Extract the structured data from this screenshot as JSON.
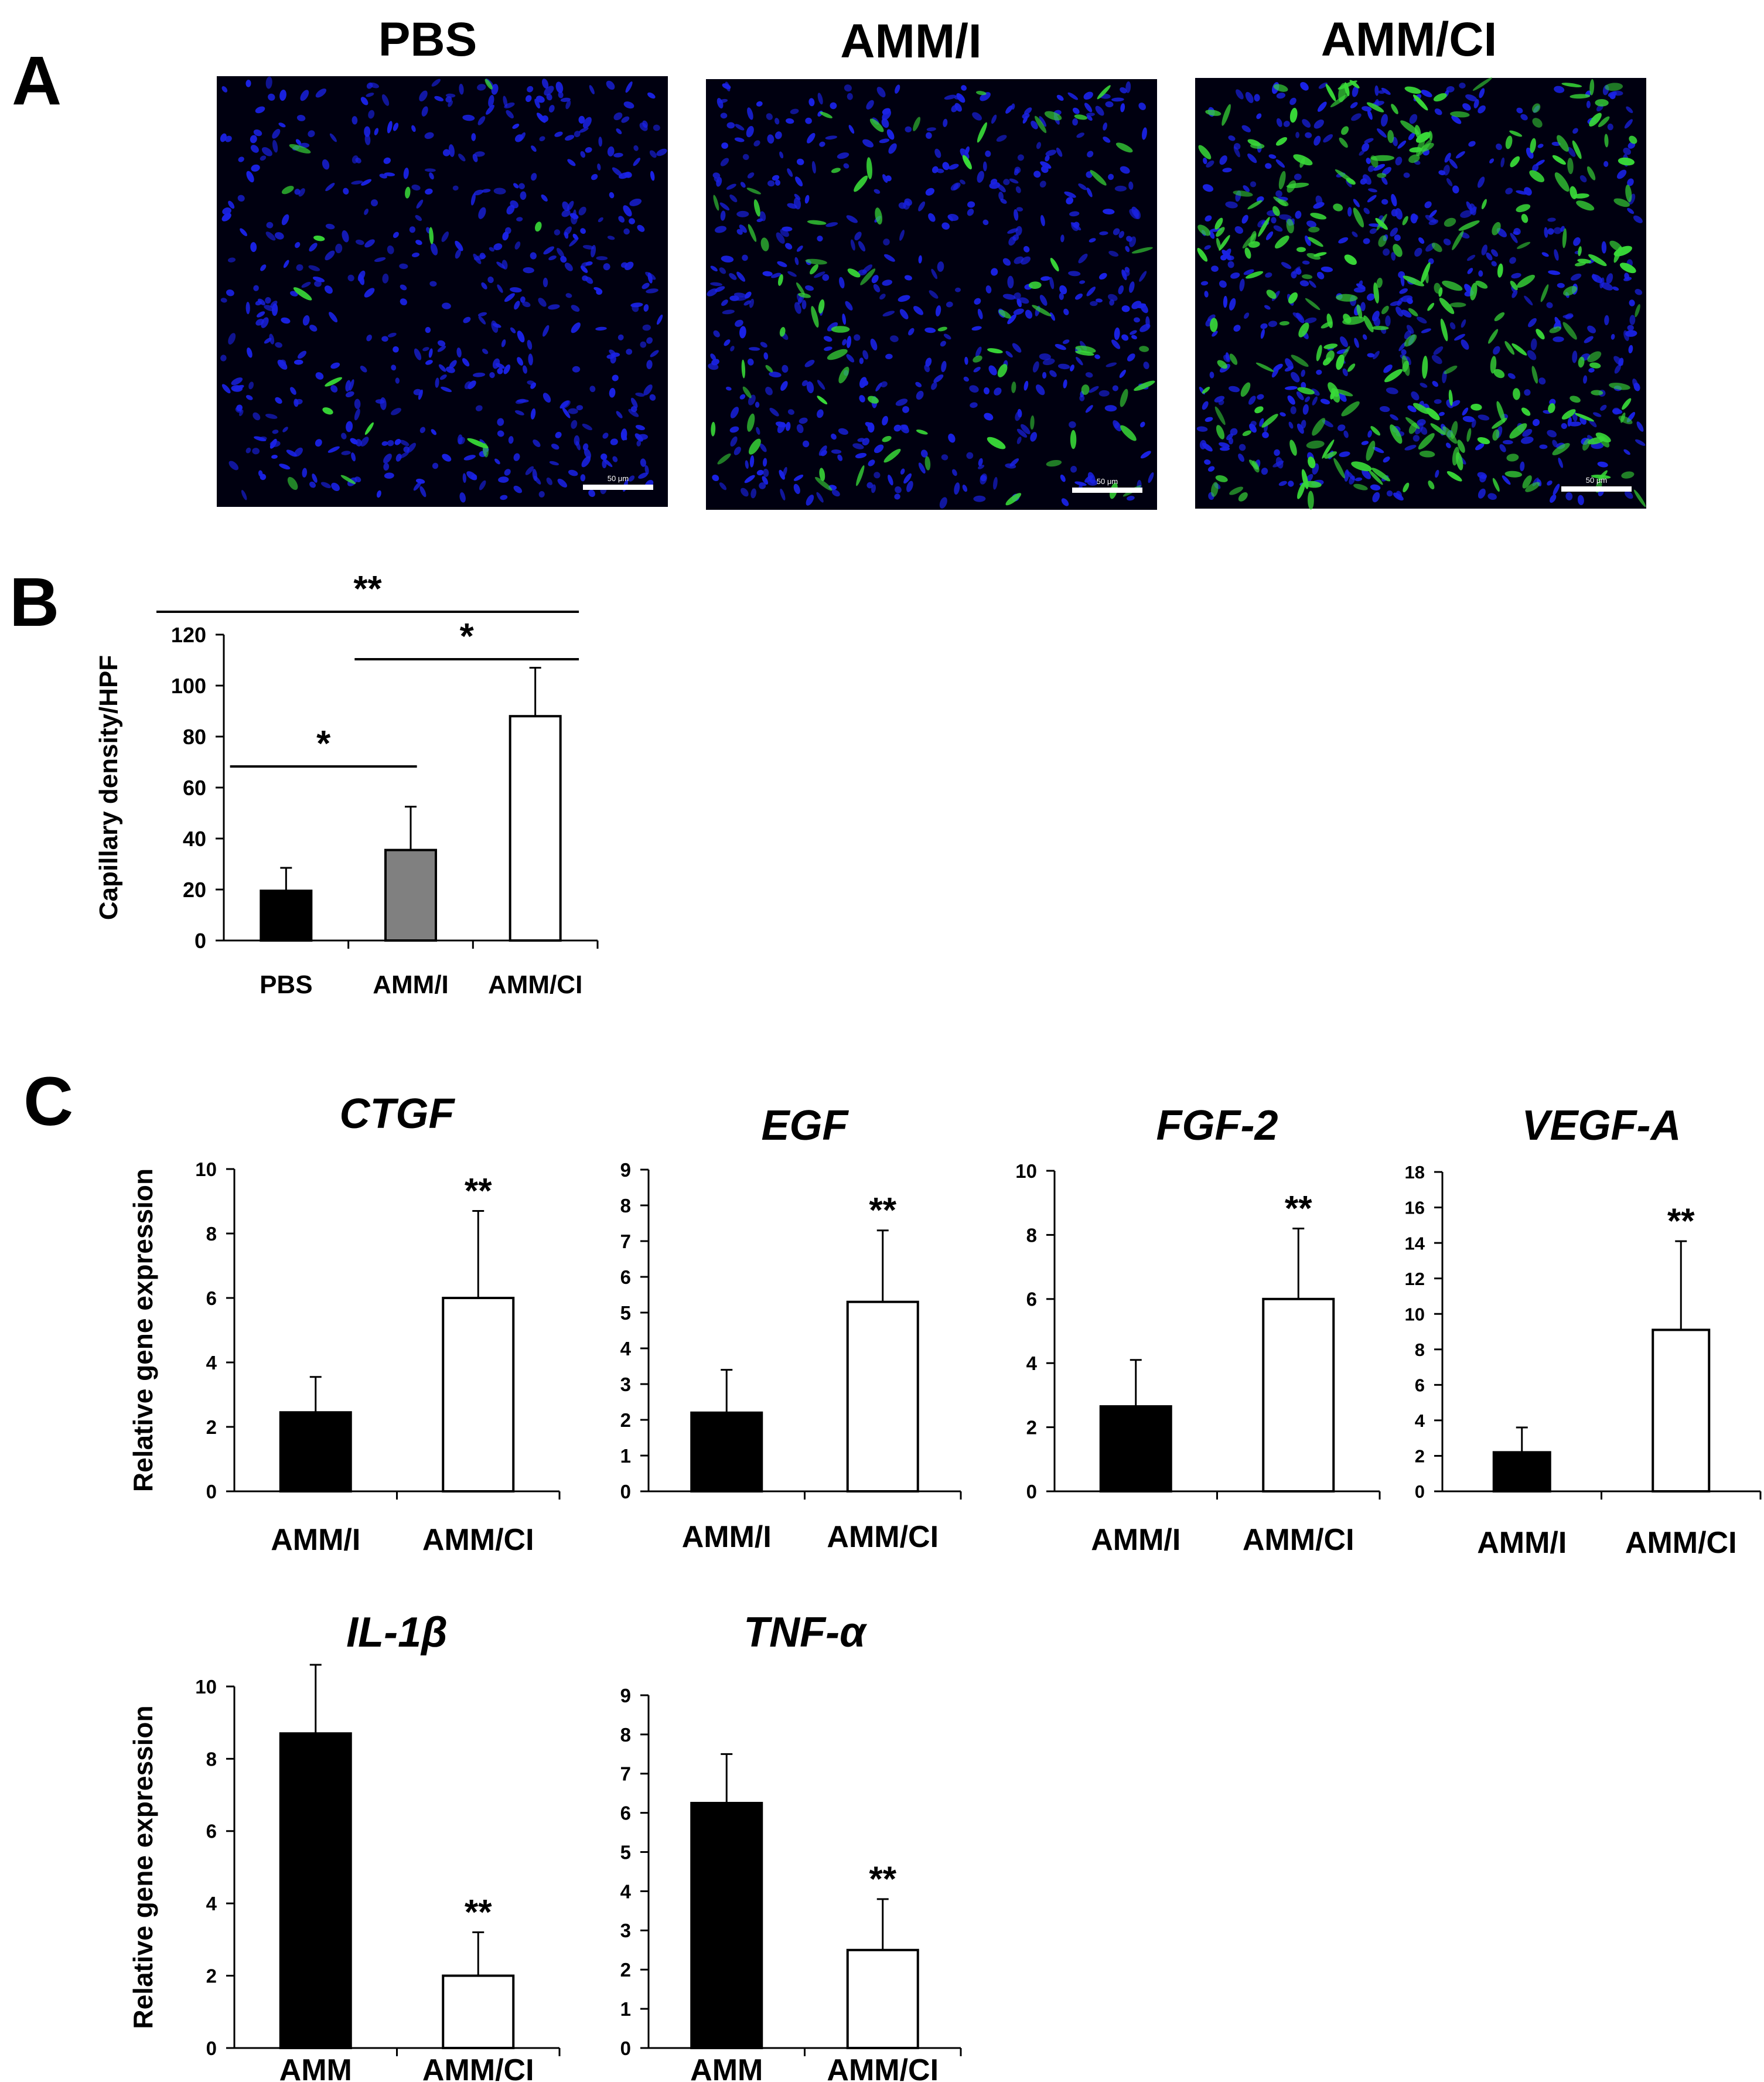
{
  "panel_letters": [
    "A",
    "B",
    "C"
  ],
  "micrographs": [
    {
      "label": "PBS",
      "scale_bar": "50 μm",
      "green_density": 0.03
    },
    {
      "label": "AMM/I",
      "scale_bar": "50 μm",
      "green_density": 0.15
    },
    {
      "label": "AMM/CI",
      "scale_bar": "50 μm",
      "green_density": 0.55
    }
  ],
  "colors": {
    "nuclei": "#1a22e6",
    "capillary_stain": "#38d838",
    "bar_black": "#000000",
    "bar_grey": "#7f7f7f",
    "bar_white": "#ffffff"
  },
  "chart_data": [
    {
      "id": "B",
      "type": "bar",
      "title": "",
      "xlabel": "",
      "ylabel": "Capillary density/HPF",
      "categories": [
        "PBS",
        "AMM/I",
        "AMM/CI"
      ],
      "values": [
        19.5,
        35.5,
        88
      ],
      "errors": [
        9,
        17,
        19
      ],
      "bar_colors": [
        "#000000",
        "#808080",
        "#ffffff"
      ],
      "ylim": [
        0,
        120
      ],
      "yticks": [
        0,
        20,
        40,
        60,
        80,
        100,
        120
      ],
      "grid": false,
      "significance": [
        {
          "from": 0,
          "to": 2,
          "label": "**",
          "level": 0
        },
        {
          "from": 1,
          "to": 2,
          "label": "*",
          "level": 1
        },
        {
          "from": 0,
          "to": 1,
          "label": "*",
          "level": 2
        }
      ]
    },
    {
      "id": "C-CTGF",
      "type": "bar",
      "title": "CTGF",
      "ylabel": "Relative gene expression",
      "categories": [
        "AMM/I",
        "AMM/CI"
      ],
      "values": [
        2.45,
        6.0
      ],
      "errors": [
        1.1,
        2.7
      ],
      "bar_colors": [
        "#000000",
        "#ffffff"
      ],
      "ylim": [
        0,
        10
      ],
      "yticks": [
        0,
        2,
        4,
        6,
        8,
        10
      ],
      "star": "**"
    },
    {
      "id": "C-EGF",
      "type": "bar",
      "title": "EGF",
      "ylabel": "",
      "categories": [
        "AMM/I",
        "AMM/CI"
      ],
      "values": [
        2.2,
        5.3
      ],
      "errors": [
        1.2,
        2.0
      ],
      "bar_colors": [
        "#000000",
        "#ffffff"
      ],
      "ylim": [
        0,
        9
      ],
      "yticks": [
        0,
        1,
        2,
        3,
        4,
        5,
        6,
        7,
        8,
        9
      ],
      "star": "**"
    },
    {
      "id": "C-FGF2",
      "type": "bar",
      "title": "FGF-2",
      "ylabel": "",
      "categories": [
        "AMM/I",
        "AMM/CI"
      ],
      "values": [
        2.65,
        6.0
      ],
      "errors": [
        1.45,
        2.2
      ],
      "bar_colors": [
        "#000000",
        "#ffffff"
      ],
      "ylim": [
        0,
        10
      ],
      "yticks": [
        0,
        2,
        4,
        6,
        8,
        10
      ],
      "star": "**"
    },
    {
      "id": "C-VEGFA",
      "type": "bar",
      "title": "VEGF-A",
      "ylabel": "",
      "categories": [
        "AMM/I",
        "AMM/CI"
      ],
      "values": [
        2.2,
        9.1
      ],
      "errors": [
        1.4,
        5.0
      ],
      "bar_colors": [
        "#000000",
        "#ffffff"
      ],
      "ylim": [
        0,
        18
      ],
      "yticks": [
        0,
        2,
        4,
        6,
        8,
        10,
        12,
        14,
        16,
        18
      ],
      "star": "**"
    },
    {
      "id": "C-IL1B",
      "type": "bar",
      "title": "IL-1β",
      "ylabel": "Relative gene expression",
      "categories": [
        "AMM",
        "AMM/CI"
      ],
      "values": [
        8.7,
        2.0
      ],
      "errors": [
        1.9,
        1.2
      ],
      "bar_colors": [
        "#000000",
        "#ffffff"
      ],
      "ylim": [
        0,
        10
      ],
      "yticks": [
        0,
        2,
        4,
        6,
        8,
        10
      ],
      "star": "**"
    },
    {
      "id": "C-TNFA",
      "type": "bar",
      "title": "TNF-α",
      "ylabel": "",
      "categories": [
        "AMM",
        "AMM/CI"
      ],
      "values": [
        6.25,
        2.5
      ],
      "errors": [
        1.25,
        1.3
      ],
      "bar_colors": [
        "#000000",
        "#ffffff"
      ],
      "ylim": [
        0,
        9
      ],
      "yticks": [
        0,
        1,
        2,
        3,
        4,
        5,
        6,
        7,
        8,
        9
      ],
      "star": "**"
    }
  ]
}
